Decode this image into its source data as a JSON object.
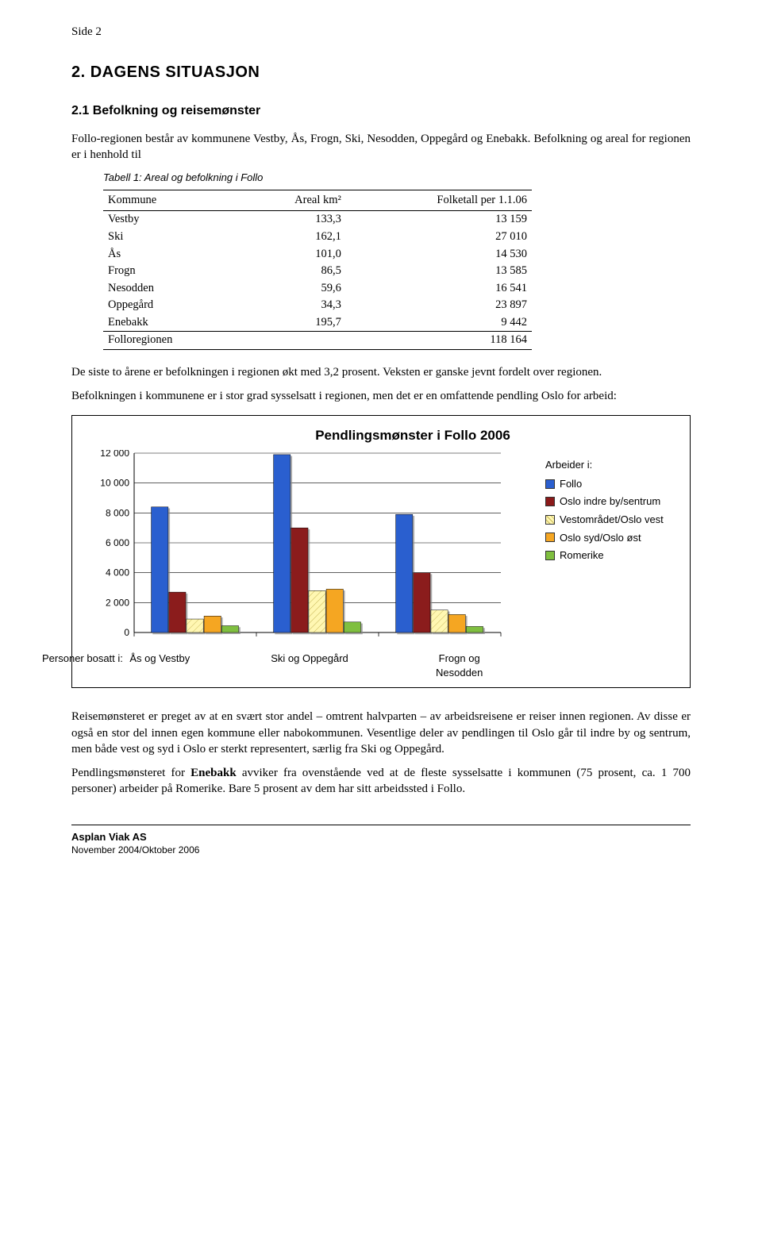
{
  "page_label": "Side 2",
  "section_title": "2.  DAGENS SITUASJON",
  "subsection_title": "2.1  Befolkning og reisemønster",
  "intro_para": "Follo-regionen består av kommunene Vestby, Ås, Frogn, Ski, Nesodden, Oppegård og Enebakk. Befolkning og areal for regionen er i henhold til",
  "table_caption": "Tabell 1: Areal og befolkning i Follo",
  "table": {
    "columns": [
      "Kommune",
      "Areal km²",
      "Folketall per 1.1.06"
    ],
    "rows": [
      [
        "Vestby",
        "133,3",
        "13 159"
      ],
      [
        "Ski",
        "162,1",
        "27 010"
      ],
      [
        "Ås",
        "101,0",
        "14 530"
      ],
      [
        "Frogn",
        "86,5",
        "13 585"
      ],
      [
        "Nesodden",
        "59,6",
        "16 541"
      ],
      [
        "Oppegård",
        "34,3",
        "23 897"
      ],
      [
        "Enebakk",
        "195,7",
        "9 442"
      ]
    ],
    "sum_row": [
      "Folloregionen",
      "",
      "118 164"
    ]
  },
  "para_after_table_1": "De siste to årene er befolkningen i regionen økt med 3,2 prosent. Veksten er ganske jevnt fordelt over regionen.",
  "para_after_table_2": "Befolkningen i kommunene er i stor grad sysselsatt i regionen, men det er en omfattende pendling Oslo for arbeid:",
  "chart": {
    "type": "bar",
    "title": "Pendlingsmønster i Follo 2006",
    "y_ticks": [
      0,
      2000,
      4000,
      6000,
      8000,
      10000,
      12000
    ],
    "y_tick_labels": [
      "0",
      "2 000",
      "4 000",
      "6 000",
      "8 000",
      "10 000",
      "12 000"
    ],
    "ylim": [
      0,
      12000
    ],
    "x_axis_prefix": "Personer bosatt i:",
    "groups": [
      "Ås og Vestby",
      "Ski og Oppegård",
      "Frogn og Nesodden"
    ],
    "series": [
      {
        "name": "Follo",
        "values": [
          8400,
          11900,
          7900
        ],
        "fill": "#2b5fcf",
        "pattern": false
      },
      {
        "name": "Oslo indre by/sentrum",
        "values": [
          2700,
          7000,
          4000
        ],
        "fill": "#8b1a1a",
        "pattern": false
      },
      {
        "name": "Vestområdet/Oslo vest",
        "values": [
          900,
          2800,
          1500
        ],
        "fill": "#fff7b2",
        "pattern": true
      },
      {
        "name": "Oslo syd/Oslo øst",
        "values": [
          1100,
          2900,
          1200
        ],
        "fill": "#f5a623",
        "pattern": false
      },
      {
        "name": "Romerike",
        "values": [
          450,
          700,
          400
        ],
        "fill": "#7fbf3f",
        "pattern": false
      }
    ],
    "legend_header": "Arbeider i:",
    "grid_color": "#000000",
    "background_color": "#ffffff",
    "axis_font_size": 12,
    "title_font_size": 17
  },
  "para_after_chart_1": "Reisemønsteret er preget av at en svært stor andel – omtrent halvparten – av arbeidsreisene er reiser innen regionen.  Av disse er også en stor del innen egen kommune eller nabokommunen. Vesentlige deler av pendlingen til Oslo går til indre by og sentrum, men både vest og syd i Oslo er sterkt representert, særlig fra Ski og Oppegård.",
  "para_after_chart_2a": "Pendlingsmønsteret for ",
  "para_after_chart_2_bold": "Enebakk",
  "para_after_chart_2b": " avviker fra ovenstående ved at de fleste sysselsatte i kommunen (75 prosent, ca. 1 700 personer) arbeider på Romerike. Bare 5 prosent av dem har sitt arbeidssted i Follo.",
  "footer_line1": "Asplan Viak AS",
  "footer_line2": "November 2004/Oktober 2006"
}
